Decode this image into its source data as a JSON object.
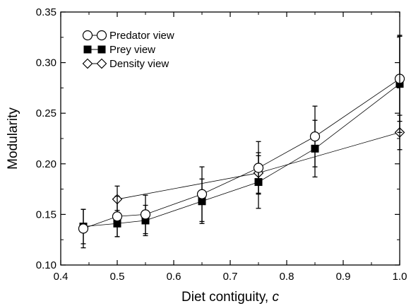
{
  "chart_data": {
    "type": "line",
    "xlabel_main": "Diet contiguity, ",
    "xlabel_var": "c",
    "ylabel": "Modularity",
    "xlim": [
      0.4,
      1.0
    ],
    "ylim": [
      0.1,
      0.35
    ],
    "xticks": [
      "0.4",
      "0.5",
      "0.6",
      "0.7",
      "0.8",
      "0.9",
      "1.0"
    ],
    "yticks": [
      "0.10",
      "0.15",
      "0.20",
      "0.25",
      "0.30",
      "0.35"
    ],
    "legend_position": "top-left",
    "series": [
      {
        "name": "Predator view",
        "marker": "circle-open",
        "x": [
          0.44,
          0.5,
          0.55,
          0.65,
          0.75,
          0.85,
          1.0
        ],
        "y": [
          0.136,
          0.148,
          0.15,
          0.17,
          0.196,
          0.227,
          0.284
        ],
        "err": [
          0.019,
          0.02,
          0.019,
          0.027,
          0.026,
          0.03,
          0.042
        ]
      },
      {
        "name": "Prey view",
        "marker": "square-filled",
        "x": [
          0.44,
          0.5,
          0.55,
          0.65,
          0.75,
          0.85,
          1.0
        ],
        "y": [
          0.138,
          0.141,
          0.144,
          0.163,
          0.182,
          0.215,
          0.279
        ],
        "err": [
          0.017,
          0.013,
          0.015,
          0.022,
          0.026,
          0.028,
          0.048
        ]
      },
      {
        "name": "Density view",
        "marker": "diamond-open",
        "x": [
          0.5,
          0.75,
          1.0
        ],
        "y": [
          0.165,
          0.191,
          0.231
        ],
        "err": [
          0.013,
          0.02,
          0.017
        ]
      }
    ]
  }
}
